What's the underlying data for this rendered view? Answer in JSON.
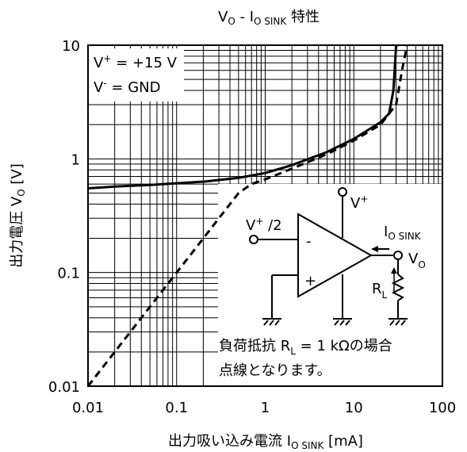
{
  "chart_data": {
    "type": "line",
    "title": {
      "main": "V",
      "main_sub": "O",
      "mid": " - I",
      "mid_sub": "O SINK",
      "tail": " 特性"
    },
    "xlabel": {
      "main": "出力吸い込み電流 I",
      "sub": "O SINK",
      "tail": " [mA]"
    },
    "ylabel": {
      "main": "出力電圧 V",
      "sub": "O",
      "tail": " [V]"
    },
    "x_scale": "log",
    "y_scale": "log",
    "xlim": [
      0.01,
      100
    ],
    "ylim": [
      0.01,
      10
    ],
    "x_ticks": [
      {
        "v": 0.01,
        "label": "0.01"
      },
      {
        "v": 0.1,
        "label": "0.1"
      },
      {
        "v": 1,
        "label": "1"
      },
      {
        "v": 10,
        "label": "10"
      },
      {
        "v": 100,
        "label": "100"
      }
    ],
    "y_ticks": [
      {
        "v": 0.01,
        "label": "0.01"
      },
      {
        "v": 0.1,
        "label": "0.1"
      },
      {
        "v": 1,
        "label": "1"
      },
      {
        "v": 10,
        "label": "10"
      }
    ],
    "grid": true,
    "series": [
      {
        "style": "solid",
        "x": [
          0.01,
          0.02,
          0.05,
          0.1,
          0.2,
          0.5,
          1,
          2,
          5,
          10,
          20,
          25,
          28,
          30,
          32
        ],
        "y": [
          0.55,
          0.57,
          0.59,
          0.61,
          0.63,
          0.68,
          0.75,
          0.88,
          1.15,
          1.5,
          2.1,
          2.5,
          4,
          10,
          10
        ]
      },
      {
        "style": "dashed",
        "x": [
          0.01,
          0.1,
          0.3,
          0.5,
          0.7,
          1,
          2,
          5,
          10,
          20,
          30,
          35,
          40
        ],
        "y": [
          0.01,
          0.1,
          0.3,
          0.5,
          0.6,
          0.66,
          0.82,
          1.1,
          1.45,
          2.0,
          3.0,
          6,
          10
        ]
      }
    ],
    "conditions": [
      {
        "main": "V",
        "sup": "+",
        "tail": " = +15 V"
      },
      {
        "main": "V",
        "sup": "-",
        "tail": " = GND"
      }
    ],
    "circuit": {
      "vplus": {
        "main": "V",
        "sup": "+"
      },
      "vhalf": {
        "main": "V",
        "sup": "+",
        "tail": " /2"
      },
      "minus": "-",
      "plus": "+",
      "isink": {
        "main": "I",
        "sub": "O SINK"
      },
      "vo": {
        "main": "V",
        "sub": "O"
      },
      "rl": {
        "main": "R",
        "sub": "L"
      }
    },
    "note": {
      "line1": {
        "main": "負荷抵抗 R",
        "sub": "L",
        "tail": " = 1 kΩの場合"
      },
      "line2": "点線となります。"
    }
  }
}
